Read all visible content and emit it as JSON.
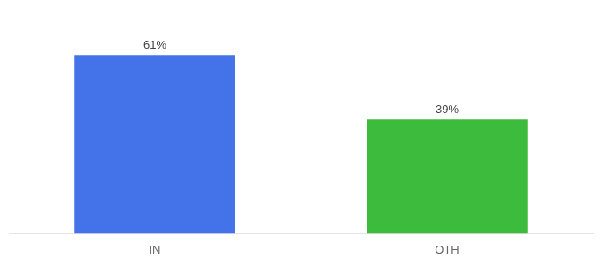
{
  "chart_data": {
    "type": "bar",
    "categories": [
      "IN",
      "OTH"
    ],
    "values": [
      61,
      39
    ],
    "value_labels": [
      "61%",
      "39%"
    ],
    "colors": [
      "#4472e8",
      "#3dbb3d"
    ],
    "ylim": [
      0,
      75
    ],
    "data_labels": true,
    "grid": false,
    "tick_labels": "x"
  }
}
